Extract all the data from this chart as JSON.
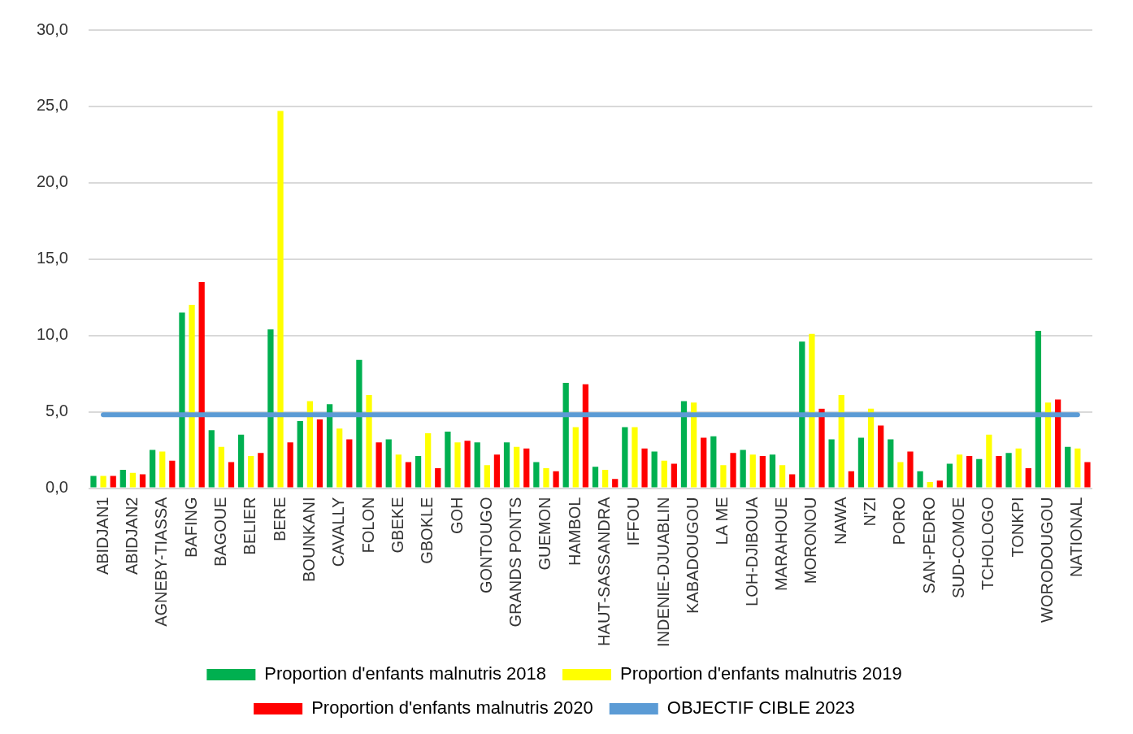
{
  "chart_data": {
    "type": "bar",
    "categories": [
      "ABIDJAN1",
      "ABIDJAN2",
      "AGNEBY-TIASSA",
      "BAFING",
      "BAGOUE",
      "BELIER",
      "BERE",
      "BOUNKANI",
      "CAVALLY",
      "FOLON",
      "GBEKE",
      "GBOKLE",
      "GOH",
      "GONTOUGO",
      "GRANDS PONTS",
      "GUEMON",
      "HAMBOL",
      "HAUT-SASSANDRA",
      "IFFOU",
      "INDENIE-DJUABLIN",
      "KABADOUGOU",
      "LA ME",
      "LOH-DJIBOUA",
      "MARAHOUE",
      "MORONOU",
      "NAWA",
      "N'ZI",
      "PORO",
      "SAN-PEDRO",
      "SUD-COMOE",
      "TCHOLOGO",
      "TONKPI",
      "WORODOUGOU",
      "NATIONAL"
    ],
    "series": [
      {
        "name": "Proportion d'enfants malnutris 2018",
        "color": "#00b050",
        "values": [
          0.8,
          1.2,
          2.5,
          11.5,
          3.8,
          3.5,
          10.4,
          4.4,
          5.5,
          8.4,
          3.2,
          2.1,
          3.7,
          3.0,
          3.0,
          1.7,
          6.9,
          1.4,
          4.0,
          2.4,
          5.7,
          3.4,
          2.5,
          2.2,
          9.6,
          3.2,
          3.3,
          3.2,
          1.1,
          1.6,
          1.9,
          2.3,
          10.3,
          2.7
        ]
      },
      {
        "name": "Proportion d'enfants malnutris 2019",
        "color": "#ffff00",
        "values": [
          0.8,
          1.0,
          2.4,
          12.0,
          2.7,
          2.1,
          24.7,
          5.7,
          3.9,
          6.1,
          2.2,
          3.6,
          3.0,
          1.5,
          2.7,
          1.3,
          4.0,
          1.2,
          4.0,
          1.8,
          5.6,
          1.5,
          2.2,
          1.5,
          10.1,
          6.1,
          5.2,
          1.7,
          0.4,
          2.2,
          3.5,
          2.6,
          5.6,
          2.6
        ]
      },
      {
        "name": "Proportion d'enfants malnutris 2020",
        "color": "#ff0000",
        "values": [
          0.8,
          0.9,
          1.8,
          13.5,
          1.7,
          2.3,
          3.0,
          4.5,
          3.2,
          3.0,
          1.7,
          1.3,
          3.1,
          2.2,
          2.6,
          1.1,
          6.8,
          0.6,
          2.6,
          1.6,
          3.3,
          2.3,
          2.1,
          0.9,
          5.2,
          1.1,
          4.1,
          2.4,
          0.5,
          2.1,
          2.1,
          1.3,
          5.8,
          1.7
        ]
      },
      {
        "name": "OBJECTIF CIBLE 2023",
        "type": "line",
        "color": "#5b9bd5",
        "values": [
          4.8,
          4.8,
          4.8,
          4.8,
          4.8,
          4.8,
          4.8,
          4.8,
          4.8,
          4.8,
          4.8,
          4.8,
          4.8,
          4.8,
          4.8,
          4.8,
          4.8,
          4.8,
          4.8,
          4.8,
          4.8,
          4.8,
          4.8,
          4.8,
          4.8,
          4.8,
          4.8,
          4.8,
          4.8,
          4.8,
          4.8,
          4.8,
          4.8,
          4.8
        ]
      }
    ],
    "ylim": [
      0,
      30
    ],
    "yticks": [
      {
        "value": 0,
        "label": "0,0"
      },
      {
        "value": 5,
        "label": "5,0"
      },
      {
        "value": 10,
        "label": "10,0"
      },
      {
        "value": 15,
        "label": "15,0"
      },
      {
        "value": 20,
        "label": "20,0"
      },
      {
        "value": 25,
        "label": "25,0"
      },
      {
        "value": 30,
        "label": "30,0"
      }
    ],
    "grid": "y",
    "legend": "bottom",
    "marker": "none"
  }
}
